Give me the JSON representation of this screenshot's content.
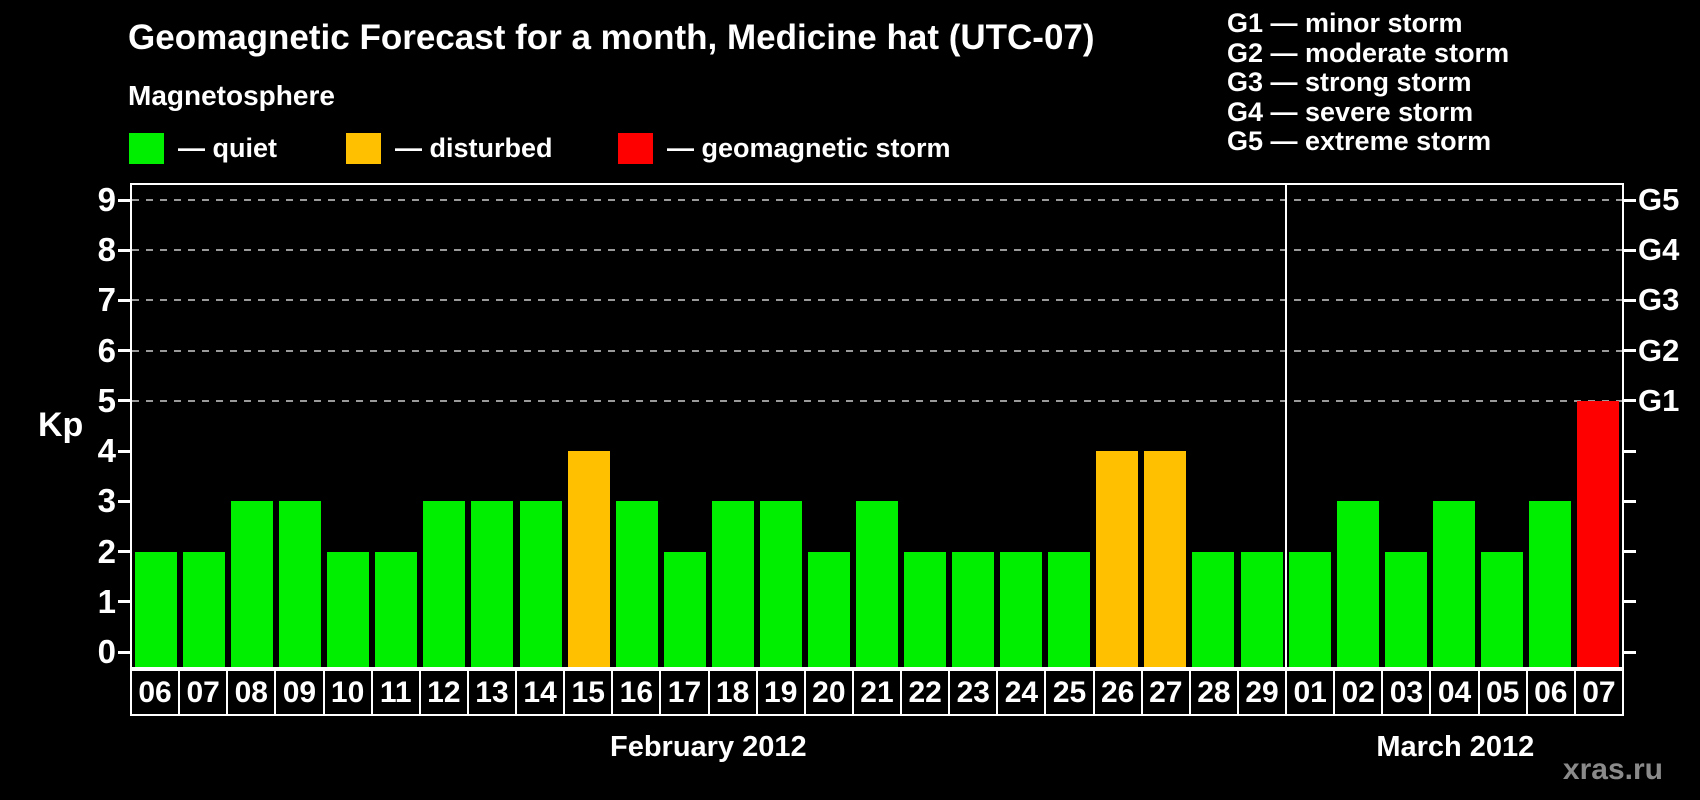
{
  "header": {
    "title": "Geomagnetic Forecast for a month, Medicine hat (UTC-07)"
  },
  "legend": {
    "heading": "Magnetosphere",
    "items": [
      {
        "status": "quiet",
        "label": "— quiet"
      },
      {
        "status": "disturbed",
        "label": "— disturbed"
      },
      {
        "status": "storm",
        "label": "— geomagnetic storm"
      }
    ]
  },
  "g_scale_legend": [
    "G1 — minor storm",
    "G2 — moderate storm",
    "G3 — strong storm",
    "G4 — severe storm",
    "G5 — extreme storm"
  ],
  "status_colors": {
    "quiet": "#00ee00",
    "disturbed": "#ffc000",
    "storm": "#ff0000"
  },
  "watermark": "xras.ru",
  "chart_data": {
    "type": "bar",
    "title": "Geomagnetic Forecast for a month, Medicine hat (UTC-07)",
    "ylabel": "Kp",
    "ylim": [
      0,
      9
    ],
    "yticks": [
      0,
      1,
      2,
      3,
      4,
      5,
      6,
      7,
      8,
      9
    ],
    "gridlines_at_kp": [
      5,
      6,
      7,
      8,
      9
    ],
    "grid": "dashed",
    "right_axis": [
      {
        "kp": 5,
        "label": "G1"
      },
      {
        "kp": 6,
        "label": "G2"
      },
      {
        "kp": 7,
        "label": "G3"
      },
      {
        "kp": 8,
        "label": "G4"
      },
      {
        "kp": 9,
        "label": "G5"
      }
    ],
    "months": [
      {
        "label": "February 2012",
        "bars": [
          {
            "day": "06",
            "kp": 2,
            "status": "quiet"
          },
          {
            "day": "07",
            "kp": 2,
            "status": "quiet"
          },
          {
            "day": "08",
            "kp": 3,
            "status": "quiet"
          },
          {
            "day": "09",
            "kp": 3,
            "status": "quiet"
          },
          {
            "day": "10",
            "kp": 2,
            "status": "quiet"
          },
          {
            "day": "11",
            "kp": 2,
            "status": "quiet"
          },
          {
            "day": "12",
            "kp": 3,
            "status": "quiet"
          },
          {
            "day": "13",
            "kp": 3,
            "status": "quiet"
          },
          {
            "day": "14",
            "kp": 3,
            "status": "quiet"
          },
          {
            "day": "15",
            "kp": 4,
            "status": "disturbed"
          },
          {
            "day": "16",
            "kp": 3,
            "status": "quiet"
          },
          {
            "day": "17",
            "kp": 2,
            "status": "quiet"
          },
          {
            "day": "18",
            "kp": 3,
            "status": "quiet"
          },
          {
            "day": "19",
            "kp": 3,
            "status": "quiet"
          },
          {
            "day": "20",
            "kp": 2,
            "status": "quiet"
          },
          {
            "day": "21",
            "kp": 3,
            "status": "quiet"
          },
          {
            "day": "22",
            "kp": 2,
            "status": "quiet"
          },
          {
            "day": "23",
            "kp": 2,
            "status": "quiet"
          },
          {
            "day": "24",
            "kp": 2,
            "status": "quiet"
          },
          {
            "day": "25",
            "kp": 2,
            "status": "quiet"
          },
          {
            "day": "26",
            "kp": 4,
            "status": "disturbed"
          },
          {
            "day": "27",
            "kp": 4,
            "status": "disturbed"
          },
          {
            "day": "28",
            "kp": 2,
            "status": "quiet"
          },
          {
            "day": "29",
            "kp": 2,
            "status": "quiet"
          }
        ]
      },
      {
        "label": "March 2012",
        "bars": [
          {
            "day": "01",
            "kp": 2,
            "status": "quiet"
          },
          {
            "day": "02",
            "kp": 3,
            "status": "quiet"
          },
          {
            "day": "03",
            "kp": 2,
            "status": "quiet"
          },
          {
            "day": "04",
            "kp": 3,
            "status": "quiet"
          },
          {
            "day": "05",
            "kp": 2,
            "status": "quiet"
          },
          {
            "day": "06",
            "kp": 3,
            "status": "quiet"
          },
          {
            "day": "07",
            "kp": 5,
            "status": "storm"
          }
        ]
      }
    ]
  }
}
